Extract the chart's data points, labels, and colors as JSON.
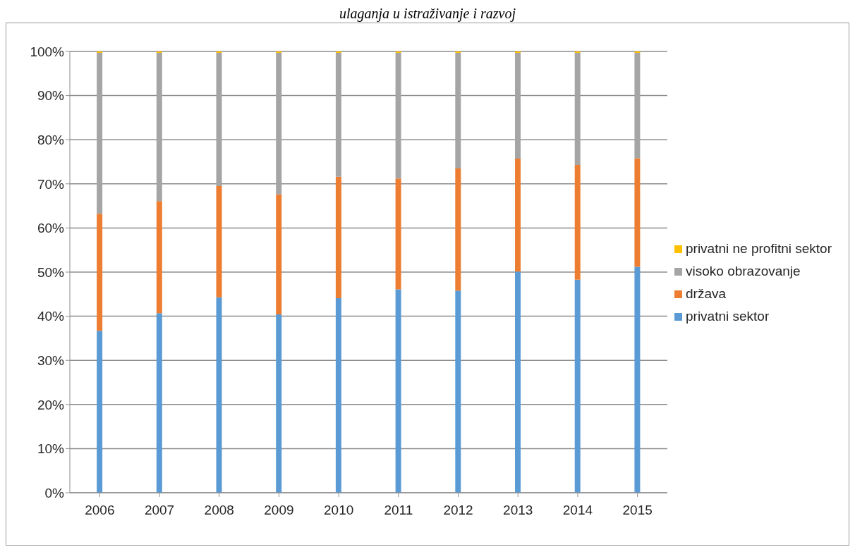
{
  "chart_data": {
    "type": "bar",
    "title": "ulaganja u istraživanje i razvoj",
    "stacked": true,
    "categories": [
      "2006",
      "2007",
      "2008",
      "2009",
      "2010",
      "2011",
      "2012",
      "2013",
      "2014",
      "2015"
    ],
    "series": [
      {
        "name": "privatni sektor",
        "color": "#5b9bd5",
        "values": [
          36.7,
          40.7,
          44.3,
          40.4,
          44.1,
          46.1,
          45.8,
          50.1,
          48.3,
          51.2
        ]
      },
      {
        "name": "država",
        "color": "#ed7d31",
        "values": [
          26.5,
          25.4,
          25.2,
          27.2,
          27.5,
          25.1,
          27.7,
          25.6,
          26.0,
          24.6
        ]
      },
      {
        "name": "visoko obrazovanje",
        "color": "#a5a5a5",
        "values": [
          36.5,
          33.6,
          30.2,
          32.1,
          28.1,
          28.5,
          26.2,
          24.0,
          25.4,
          23.9
        ]
      },
      {
        "name": "privatni ne profitni sektor",
        "color": "#ffc000",
        "values": [
          0.3,
          0.3,
          0.3,
          0.3,
          0.3,
          0.3,
          0.3,
          0.3,
          0.3,
          0.3
        ]
      }
    ],
    "ylim": [
      0,
      100
    ],
    "yticks": [
      {
        "value": 0,
        "label": "0%"
      },
      {
        "value": 10,
        "label": "10%"
      },
      {
        "value": 20,
        "label": "20%"
      },
      {
        "value": 30,
        "label": "30%"
      },
      {
        "value": 40,
        "label": "40%"
      },
      {
        "value": 50,
        "label": "50%"
      },
      {
        "value": 60,
        "label": "60%"
      },
      {
        "value": 70,
        "label": "70%"
      },
      {
        "value": 80,
        "label": "80%"
      },
      {
        "value": 90,
        "label": "90%"
      },
      {
        "value": 100,
        "label": "100%"
      }
    ],
    "grid": "y",
    "legend": "right"
  }
}
